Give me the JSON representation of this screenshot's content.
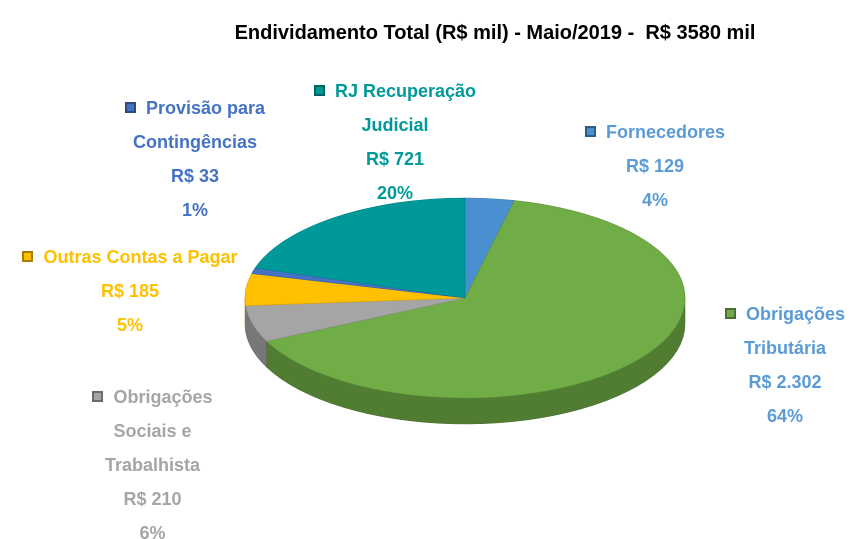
{
  "chart_data": {
    "type": "pie3d",
    "title": "Endividamento Total (R$ mil) - Maio/2019 -  R$ 3580 mil",
    "categories": [
      "Fornecedores",
      "Obrigações Tributária",
      "Obrigações Sociais e Trabalhista",
      "Outras Contas a Pagar",
      "Provisão para Contingências",
      "RJ Recuperação Judicial"
    ],
    "values": [
      129,
      2302,
      210,
      185,
      33,
      721
    ],
    "value_labels": [
      "R$ 129",
      "R$ 2.302",
      "R$ 210",
      "R$ 185",
      "R$ 33",
      "R$ 721"
    ],
    "percent_labels": [
      "4%",
      "64%",
      "6%",
      "5%",
      "1%",
      "20%"
    ],
    "colors": [
      "#4a90d0",
      "#70ad47",
      "#a5a5a5",
      "#ffc000",
      "#4472c4",
      "#009999"
    ],
    "label_colors": [
      "#5b9bd5",
      "#5b9bd5",
      "#a5a5a5",
      "#ffc000",
      "#4472c4",
      "#009999"
    ]
  }
}
